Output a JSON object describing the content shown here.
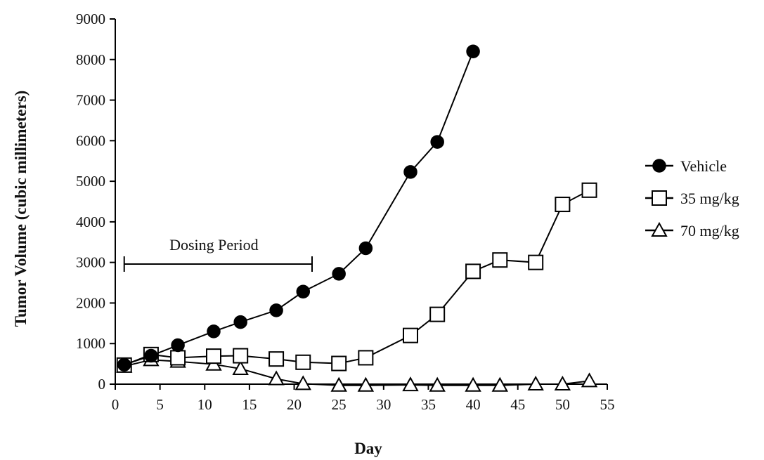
{
  "chart_data": {
    "type": "line",
    "title": "",
    "xlabel": "Day",
    "ylabel": "Tumor Volume (cubic millimeters)",
    "xlim": [
      0,
      55
    ],
    "ylim": [
      0,
      9000
    ],
    "xticks": [
      0,
      5,
      10,
      15,
      20,
      25,
      30,
      35,
      40,
      45,
      50,
      55
    ],
    "yticks": [
      0,
      1000,
      2000,
      3000,
      4000,
      5000,
      6000,
      7000,
      8000,
      9000
    ],
    "grid": false,
    "legend_position": "right",
    "series": [
      {
        "name": "Vehicle",
        "marker": "filled-circle",
        "color": "#000000",
        "x": [
          1,
          4,
          7,
          11,
          14,
          18,
          21,
          25,
          28,
          33,
          36,
          40
        ],
        "y": [
          480,
          700,
          960,
          1300,
          1530,
          1820,
          2280,
          2720,
          3350,
          5230,
          5970,
          8200
        ]
      },
      {
        "name": "35 mg/kg",
        "marker": "open-square",
        "color": "#000000",
        "x": [
          1,
          4,
          7,
          11,
          14,
          18,
          21,
          25,
          28,
          33,
          36,
          40,
          43,
          47,
          50,
          53
        ],
        "y": [
          470,
          730,
          650,
          690,
          700,
          620,
          540,
          510,
          650,
          1200,
          1720,
          2780,
          3060,
          3000,
          4430,
          4780
        ]
      },
      {
        "name": "70 mg/kg",
        "marker": "open-triangle",
        "color": "#000000",
        "x": [
          1,
          4,
          7,
          11,
          14,
          18,
          21,
          25,
          28,
          33,
          36,
          40,
          43,
          47,
          50,
          53
        ],
        "y": [
          440,
          600,
          560,
          490,
          380,
          130,
          10,
          -30,
          -30,
          -20,
          -30,
          -30,
          -30,
          0,
          0,
          80
        ]
      }
    ],
    "annotations": [
      {
        "text": "Dosing Period",
        "x_start": 1,
        "x_end": 22,
        "y": 3000
      }
    ]
  }
}
